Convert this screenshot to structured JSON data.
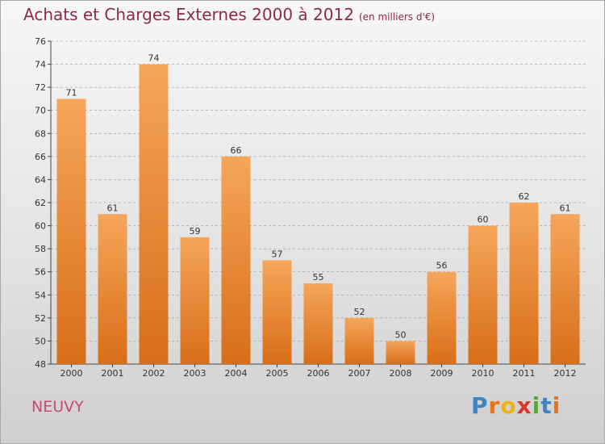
{
  "header": {
    "title": "Achats et Charges Externes 2000 à 2012",
    "subtitle": "(en milliers d'€)"
  },
  "footer": {
    "commune": "NEUVY",
    "logo_letters": [
      "P",
      "r",
      "o",
      "x",
      "i",
      "t",
      "i"
    ],
    "logo_colors": [
      "#3c86c8",
      "#e8741b",
      "#f2b317",
      "#d53a2c",
      "#5aa83b",
      "#3c86c8",
      "#e8741b"
    ]
  },
  "colors": {
    "bar_top": "#f5a65a",
    "bar_bottom": "#d86e18",
    "axis": "#444444",
    "grid": "#9a9a9a"
  },
  "chart_data": {
    "type": "bar",
    "categories": [
      "2000",
      "2001",
      "2002",
      "2003",
      "2004",
      "2005",
      "2006",
      "2007",
      "2008",
      "2009",
      "2010",
      "2011",
      "2012"
    ],
    "values": [
      71,
      61,
      74,
      59,
      66,
      57,
      55,
      52,
      50,
      56,
      60,
      62,
      61
    ],
    "title": "Achats et Charges Externes 2000 à 2012",
    "ylim": [
      48,
      76
    ],
    "yticks": [
      48,
      50,
      52,
      54,
      56,
      58,
      60,
      62,
      64,
      66,
      68,
      70,
      72,
      74,
      76
    ],
    "grid": "horizontal dashed"
  }
}
